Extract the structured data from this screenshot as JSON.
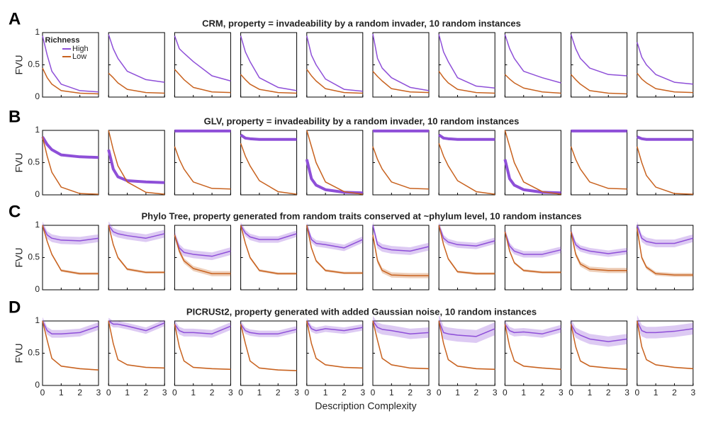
{
  "chart_data": {
    "type": "line",
    "legend_title": "Richness",
    "series": [
      {
        "name": "High",
        "color": "#8e4fd8"
      },
      {
        "name": "Low",
        "color": "#c8621f"
      }
    ],
    "xlabel": "Description Complexity",
    "ylabel": "FVU",
    "x": [
      0,
      0.25,
      0.5,
      1,
      2,
      3
    ],
    "xlim": [
      0,
      3
    ],
    "ylim": [
      0,
      1
    ],
    "xticks": [
      0,
      1,
      2,
      3
    ],
    "yticks": [
      0,
      0.5,
      1
    ],
    "rows": [
      {
        "letter": "A",
        "title": "CRM, property = invadeability by a random invader, 10 random instances",
        "line_widths": [
          1.5,
          1.5
        ],
        "panels": [
          {
            "values": [
              [
                0.95,
                0.65,
                0.4,
                0.2,
                0.1,
                0.08
              ],
              [
                0.45,
                0.3,
                0.2,
                0.1,
                0.06,
                0.05
              ]
            ]
          },
          {
            "values": [
              [
                0.97,
                0.75,
                0.6,
                0.4,
                0.27,
                0.23
              ],
              [
                0.37,
                0.3,
                0.22,
                0.12,
                0.07,
                0.06
              ]
            ]
          },
          {
            "values": [
              [
                0.95,
                0.75,
                0.68,
                0.55,
                0.33,
                0.25
              ],
              [
                0.43,
                0.35,
                0.27,
                0.15,
                0.08,
                0.07
              ]
            ]
          },
          {
            "values": [
              [
                0.95,
                0.7,
                0.55,
                0.3,
                0.15,
                0.1
              ],
              [
                0.35,
                0.27,
                0.2,
                0.12,
                0.07,
                0.06
              ]
            ]
          },
          {
            "values": [
              [
                0.95,
                0.65,
                0.5,
                0.28,
                0.12,
                0.09
              ],
              [
                0.43,
                0.33,
                0.25,
                0.13,
                0.07,
                0.06
              ]
            ]
          },
          {
            "values": [
              [
                0.98,
                0.6,
                0.45,
                0.3,
                0.15,
                0.1
              ],
              [
                0.4,
                0.32,
                0.25,
                0.13,
                0.08,
                0.07
              ]
            ]
          },
          {
            "values": [
              [
                0.97,
                0.7,
                0.55,
                0.3,
                0.17,
                0.14
              ],
              [
                0.4,
                0.3,
                0.22,
                0.12,
                0.07,
                0.06
              ]
            ]
          },
          {
            "values": [
              [
                0.97,
                0.75,
                0.6,
                0.4,
                0.3,
                0.22
              ],
              [
                0.35,
                0.28,
                0.22,
                0.14,
                0.08,
                0.06
              ]
            ]
          },
          {
            "values": [
              [
                0.97,
                0.75,
                0.6,
                0.45,
                0.35,
                0.33
              ],
              [
                0.35,
                0.27,
                0.2,
                0.1,
                0.06,
                0.05
              ]
            ]
          },
          {
            "values": [
              [
                0.85,
                0.62,
                0.5,
                0.35,
                0.23,
                0.2
              ],
              [
                0.37,
                0.28,
                0.22,
                0.13,
                0.08,
                0.07
              ]
            ]
          }
        ]
      },
      {
        "letter": "B",
        "title": "GLV, property = invadeability by a random invader, 10 random instances",
        "line_widths": [
          4,
          1.5
        ],
        "panels": [
          {
            "values": [
              [
                0.9,
                0.78,
                0.7,
                0.62,
                0.59,
                0.58
              ],
              [
                0.9,
                0.6,
                0.35,
                0.12,
                0.02,
                0.01
              ]
            ]
          },
          {
            "values": [
              [
                0.7,
                0.4,
                0.28,
                0.22,
                0.2,
                0.19
              ],
              [
                1,
                0.7,
                0.45,
                0.2,
                0.04,
                0.01
              ]
            ]
          },
          {
            "values": [
              [
                0.99,
                0.99,
                0.99,
                0.99,
                0.99,
                0.99
              ],
              [
                0.75,
                0.55,
                0.4,
                0.2,
                0.1,
                0.09
              ]
            ]
          },
          {
            "values": [
              [
                0.93,
                0.88,
                0.87,
                0.86,
                0.86,
                0.86
              ],
              [
                0.8,
                0.6,
                0.45,
                0.22,
                0.05,
                0.01
              ]
            ]
          },
          {
            "values": [
              [
                0.55,
                0.25,
                0.15,
                0.08,
                0.04,
                0.03
              ],
              [
                1,
                0.75,
                0.5,
                0.2,
                0.05,
                0.01
              ]
            ]
          },
          {
            "values": [
              [
                0.99,
                0.99,
                0.99,
                0.99,
                0.99,
                0.99
              ],
              [
                0.75,
                0.55,
                0.4,
                0.2,
                0.1,
                0.09
              ]
            ]
          },
          {
            "values": [
              [
                0.93,
                0.88,
                0.87,
                0.86,
                0.86,
                0.86
              ],
              [
                0.8,
                0.6,
                0.45,
                0.22,
                0.05,
                0.01
              ]
            ]
          },
          {
            "values": [
              [
                0.55,
                0.25,
                0.15,
                0.08,
                0.04,
                0.03
              ],
              [
                1,
                0.75,
                0.5,
                0.2,
                0.05,
                0.01
              ]
            ]
          },
          {
            "values": [
              [
                0.99,
                0.99,
                0.99,
                0.99,
                0.99,
                0.99
              ],
              [
                0.75,
                0.55,
                0.4,
                0.2,
                0.1,
                0.09
              ]
            ]
          },
          {
            "values": [
              [
                0.9,
                0.87,
                0.86,
                0.86,
                0.86,
                0.86
              ],
              [
                0.75,
                0.5,
                0.3,
                0.12,
                0.02,
                0.01
              ]
            ]
          }
        ]
      },
      {
        "letter": "C",
        "title": "Phylo Tree, property generated from random traits conserved at ~phylum level, 10 random instances",
        "line_widths": [
          1.5,
          1.5
        ],
        "panels": [
          {
            "values": [
              [
                1,
                0.85,
                0.8,
                0.77,
                0.76,
                0.8
              ],
              [
                1,
                0.75,
                0.55,
                0.3,
                0.25,
                0.25
              ]
            ],
            "errors": [
              0.06,
              0.02
            ]
          },
          {
            "values": [
              [
                1,
                0.9,
                0.87,
                0.84,
                0.8,
                0.87
              ],
              [
                1,
                0.7,
                0.5,
                0.32,
                0.27,
                0.27
              ]
            ],
            "errors": [
              0.06,
              0.02
            ]
          },
          {
            "values": [
              [
                0.85,
                0.65,
                0.58,
                0.55,
                0.52,
                0.6
              ],
              [
                0.85,
                0.6,
                0.45,
                0.33,
                0.25,
                0.25
              ]
            ],
            "errors": [
              0.06,
              0.04
            ]
          },
          {
            "values": [
              [
                1,
                0.88,
                0.82,
                0.78,
                0.78,
                0.87
              ],
              [
                1,
                0.72,
                0.5,
                0.3,
                0.25,
                0.25
              ]
            ],
            "errors": [
              0.05,
              0.02
            ]
          },
          {
            "values": [
              [
                1,
                0.78,
                0.72,
                0.7,
                0.65,
                0.78
              ],
              [
                1,
                0.65,
                0.45,
                0.3,
                0.26,
                0.26
              ]
            ],
            "errors": [
              0.05,
              0.02
            ]
          },
          {
            "values": [
              [
                1,
                0.7,
                0.65,
                0.62,
                0.6,
                0.67
              ],
              [
                0.85,
                0.45,
                0.3,
                0.23,
                0.22,
                0.22
              ]
            ],
            "errors": [
              0.06,
              0.04
            ]
          },
          {
            "values": [
              [
                1,
                0.8,
                0.74,
                0.7,
                0.68,
                0.76
              ],
              [
                1,
                0.7,
                0.48,
                0.28,
                0.25,
                0.25
              ]
            ],
            "errors": [
              0.05,
              0.02
            ]
          },
          {
            "values": [
              [
                0.9,
                0.68,
                0.6,
                0.55,
                0.55,
                0.62
              ],
              [
                0.9,
                0.6,
                0.42,
                0.3,
                0.27,
                0.27
              ]
            ],
            "errors": [
              0.05,
              0.02
            ]
          },
          {
            "values": [
              [
                0.9,
                0.7,
                0.64,
                0.6,
                0.56,
                0.6
              ],
              [
                0.9,
                0.55,
                0.4,
                0.32,
                0.3,
                0.3
              ]
            ],
            "errors": [
              0.05,
              0.04
            ]
          },
          {
            "values": [
              [
                1,
                0.8,
                0.75,
                0.72,
                0.72,
                0.8
              ],
              [
                0.95,
                0.5,
                0.35,
                0.25,
                0.23,
                0.23
              ]
            ],
            "errors": [
              0.06,
              0.03
            ]
          }
        ]
      },
      {
        "letter": "D",
        "title": "PICRUSt2, property generated with added Gaussian noise, 10 random instances",
        "line_widths": [
          1.5,
          1.5
        ],
        "panels": [
          {
            "values": [
              [
                1,
                0.85,
                0.8,
                0.8,
                0.82,
                0.92
              ],
              [
                1,
                0.7,
                0.42,
                0.3,
                0.26,
                0.24
              ]
            ],
            "errors": [
              0.06,
              0.01
            ]
          },
          {
            "values": [
              [
                1,
                0.95,
                0.95,
                0.92,
                0.85,
                0.97
              ],
              [
                1,
                0.65,
                0.4,
                0.32,
                0.28,
                0.27
              ]
            ],
            "errors": [
              0.05,
              0.01
            ]
          },
          {
            "values": [
              [
                0.95,
                0.85,
                0.82,
                0.82,
                0.8,
                0.92
              ],
              [
                0.95,
                0.6,
                0.38,
                0.28,
                0.26,
                0.25
              ]
            ],
            "errors": [
              0.06,
              0.01
            ]
          },
          {
            "values": [
              [
                0.95,
                0.85,
                0.82,
                0.8,
                0.8,
                0.87
              ],
              [
                0.95,
                0.65,
                0.38,
                0.27,
                0.24,
                0.23
              ]
            ],
            "errors": [
              0.05,
              0.01
            ]
          },
          {
            "values": [
              [
                1,
                0.88,
                0.85,
                0.88,
                0.85,
                0.9
              ],
              [
                1,
                0.65,
                0.42,
                0.32,
                0.28,
                0.27
              ]
            ],
            "errors": [
              0.05,
              0.01
            ]
          },
          {
            "values": [
              [
                1,
                0.9,
                0.87,
                0.85,
                0.8,
                0.82
              ],
              [
                1,
                0.7,
                0.42,
                0.32,
                0.27,
                0.26
              ]
            ],
            "errors": [
              0.08,
              0.01
            ]
          },
          {
            "values": [
              [
                1,
                0.82,
                0.8,
                0.78,
                0.76,
                0.88
              ],
              [
                1,
                0.65,
                0.4,
                0.3,
                0.26,
                0.25
              ]
            ],
            "errors": [
              0.1,
              0.01
            ]
          },
          {
            "values": [
              [
                0.95,
                0.85,
                0.82,
                0.83,
                0.8,
                0.88
              ],
              [
                0.95,
                0.6,
                0.38,
                0.3,
                0.27,
                0.25
              ]
            ],
            "errors": [
              0.06,
              0.01
            ]
          },
          {
            "values": [
              [
                0.95,
                0.82,
                0.78,
                0.72,
                0.68,
                0.72
              ],
              [
                0.95,
                0.6,
                0.38,
                0.3,
                0.27,
                0.25
              ]
            ],
            "errors": [
              0.08,
              0.01
            ]
          },
          {
            "values": [
              [
                1,
                0.85,
                0.82,
                0.82,
                0.84,
                0.88
              ],
              [
                1,
                0.6,
                0.4,
                0.32,
                0.28,
                0.26
              ]
            ],
            "errors": [
              0.09,
              0.01
            ]
          }
        ]
      }
    ]
  }
}
